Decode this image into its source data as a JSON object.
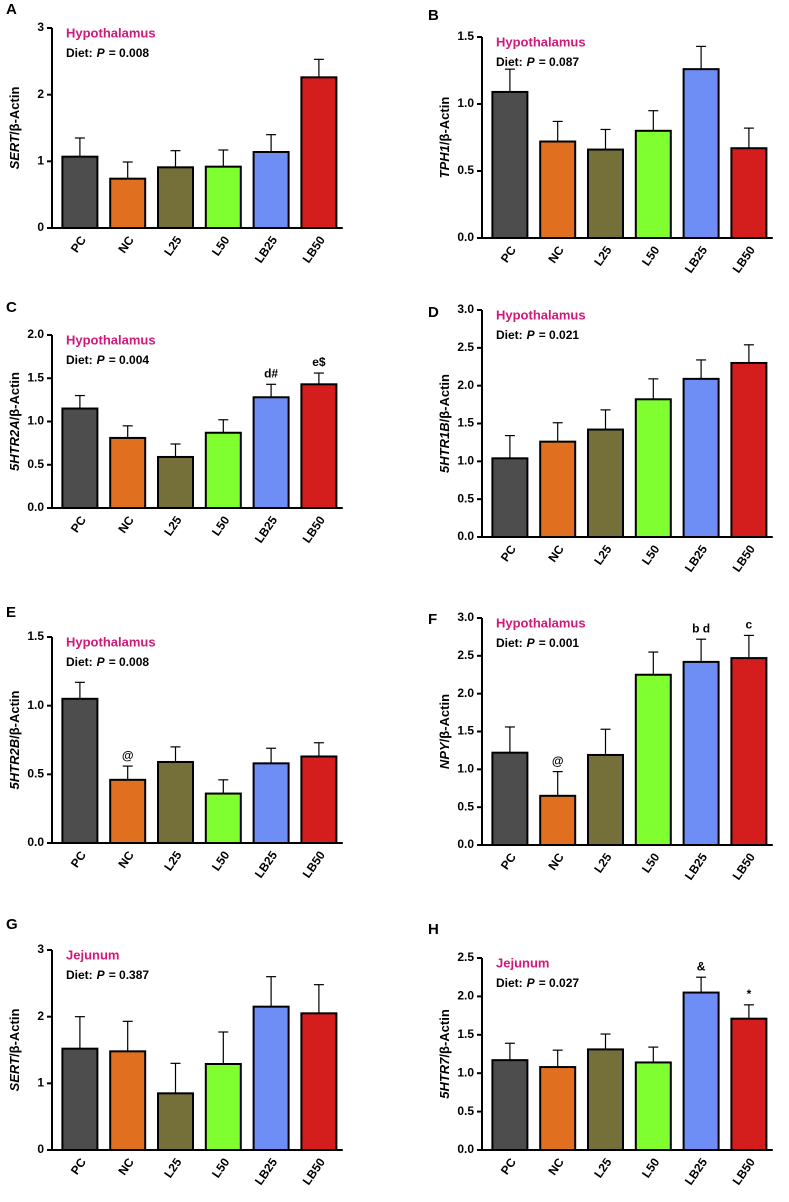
{
  "chart_data": [
    {
      "type": "bar",
      "panel": "A",
      "tissue": "Hypothalamus",
      "stat": {
        "label": "Diet:",
        "symbol": "P",
        "text": "= 0.008"
      },
      "ylabel": {
        "gene": "SERT",
        "text": "/β-Actin"
      },
      "categories": [
        "PC",
        "NC",
        "L25",
        "L50",
        "LB25",
        "LB50"
      ],
      "values": [
        1.07,
        0.74,
        0.91,
        0.92,
        1.14,
        2.26
      ],
      "errors": [
        0.28,
        0.25,
        0.25,
        0.25,
        0.26,
        0.27
      ],
      "bar_annotations": [
        null,
        null,
        null,
        null,
        null,
        null
      ],
      "colors": [
        "#4d4d4d",
        "#e07020",
        "#75703a",
        "#80ff30",
        "#6f8ef5",
        "#d41e1e"
      ],
      "ylim": [
        0,
        3
      ],
      "yticks": [
        0,
        1,
        2,
        3
      ]
    },
    {
      "type": "bar",
      "panel": "B",
      "tissue": "Hypothalamus",
      "stat": {
        "label": "Diet:",
        "symbol": "P",
        "text": "= 0.087"
      },
      "ylabel": {
        "gene": "TPH1",
        "text": "/β-Actin"
      },
      "categories": [
        "PC",
        "NC",
        "L25",
        "L50",
        "LB25",
        "LB50"
      ],
      "values": [
        1.09,
        0.72,
        0.66,
        0.8,
        1.26,
        0.67
      ],
      "errors": [
        0.17,
        0.15,
        0.15,
        0.15,
        0.17,
        0.15
      ],
      "bar_annotations": [
        null,
        null,
        null,
        null,
        null,
        null
      ],
      "colors": [
        "#4d4d4d",
        "#e07020",
        "#75703a",
        "#80ff30",
        "#6f8ef5",
        "#d41e1e"
      ],
      "ylim": [
        0,
        1.5
      ],
      "yticks": [
        {
          "value": 0,
          "label": "0.0"
        },
        0.5,
        {
          "value": 1,
          "label": "1.0"
        },
        1.5
      ]
    },
    {
      "type": "bar",
      "panel": "C",
      "tissue": "Hypothalamus",
      "stat": {
        "label": "Diet:",
        "symbol": "P",
        "text": "= 0.004"
      },
      "ylabel": {
        "gene": "5HTR2A",
        "text": "/β-Actin"
      },
      "categories": [
        "PC",
        "NC",
        "L25",
        "L50",
        "LB25",
        "LB50"
      ],
      "values": [
        1.15,
        0.81,
        0.59,
        0.87,
        1.28,
        1.43
      ],
      "errors": [
        0.15,
        0.14,
        0.15,
        0.15,
        0.15,
        0.13
      ],
      "bar_annotations": [
        null,
        null,
        null,
        null,
        "d#",
        "e$"
      ],
      "colors": [
        "#4d4d4d",
        "#e07020",
        "#75703a",
        "#80ff30",
        "#6f8ef5",
        "#d41e1e"
      ],
      "ylim": [
        0,
        2
      ],
      "yticks": [
        {
          "value": 0,
          "label": "0.0"
        },
        0.5,
        {
          "value": 1,
          "label": "1.0"
        },
        1.5,
        {
          "value": 2,
          "label": "2.0"
        }
      ]
    },
    {
      "type": "bar",
      "panel": "D",
      "tissue": "Hypothalamus",
      "stat": {
        "label": "Diet:",
        "symbol": "P",
        "text": "= 0.021"
      },
      "ylabel": {
        "gene": "5HTR1B",
        "text": "/β-Actin"
      },
      "categories": [
        "PC",
        "NC",
        "L25",
        "L50",
        "LB25",
        "LB50"
      ],
      "values": [
        1.04,
        1.26,
        1.42,
        1.82,
        2.09,
        2.3
      ],
      "errors": [
        0.3,
        0.25,
        0.26,
        0.27,
        0.25,
        0.24
      ],
      "bar_annotations": [
        null,
        null,
        null,
        null,
        null,
        null
      ],
      "colors": [
        "#4d4d4d",
        "#e07020",
        "#75703a",
        "#80ff30",
        "#6f8ef5",
        "#d41e1e"
      ],
      "ylim": [
        0,
        3
      ],
      "yticks": [
        {
          "value": 0,
          "label": "0.0"
        },
        0.5,
        {
          "value": 1,
          "label": "1.0"
        },
        1.5,
        {
          "value": 2,
          "label": "2.0"
        },
        2.5,
        {
          "value": 3,
          "label": "3.0"
        }
      ]
    },
    {
      "type": "bar",
      "panel": "E",
      "tissue": "Hypothalamus",
      "stat": {
        "label": "Diet:",
        "symbol": "P",
        "text": "= 0.008"
      },
      "ylabel": {
        "gene": "5HTR2B",
        "text": "/β-Actin"
      },
      "categories": [
        "PC",
        "NC",
        "L25",
        "L50",
        "LB25",
        "LB50"
      ],
      "values": [
        1.05,
        0.46,
        0.59,
        0.36,
        0.58,
        0.63
      ],
      "errors": [
        0.12,
        0.1,
        0.11,
        0.1,
        0.11,
        0.1
      ],
      "bar_annotations": [
        null,
        "@",
        null,
        null,
        null,
        null
      ],
      "colors": [
        "#4d4d4d",
        "#e07020",
        "#75703a",
        "#80ff30",
        "#6f8ef5",
        "#d41e1e"
      ],
      "ylim": [
        0,
        1.5
      ],
      "yticks": [
        {
          "value": 0,
          "label": "0.0"
        },
        0.5,
        {
          "value": 1,
          "label": "1.0"
        },
        1.5
      ]
    },
    {
      "type": "bar",
      "panel": "F",
      "tissue": "Hypothalamus",
      "stat": {
        "label": "Diet:",
        "symbol": "P",
        "text": "= 0.001"
      },
      "ylabel": {
        "gene": "NPY",
        "text": "/β-Actin"
      },
      "categories": [
        "PC",
        "NC",
        "L25",
        "L50",
        "LB25",
        "LB50"
      ],
      "values": [
        1.22,
        0.65,
        1.19,
        2.25,
        2.42,
        2.47
      ],
      "errors": [
        0.34,
        0.32,
        0.34,
        0.3,
        0.3,
        0.3
      ],
      "bar_annotations": [
        null,
        "@",
        null,
        null,
        "b d",
        "c"
      ],
      "colors": [
        "#4d4d4d",
        "#e07020",
        "#75703a",
        "#80ff30",
        "#6f8ef5",
        "#d41e1e"
      ],
      "ylim": [
        0,
        3
      ],
      "yticks": [
        {
          "value": 0,
          "label": "0.0"
        },
        0.5,
        {
          "value": 1,
          "label": "1.0"
        },
        1.5,
        {
          "value": 2,
          "label": "2.0"
        },
        2.5,
        {
          "value": 3,
          "label": "3.0"
        }
      ]
    },
    {
      "type": "bar",
      "panel": "G",
      "tissue": "Jejunum",
      "stat": {
        "label": "Diet:",
        "symbol": "P",
        "text": "= 0.387"
      },
      "ylabel": {
        "gene": "SERT",
        "text": "/β-Actin"
      },
      "categories": [
        "PC",
        "NC",
        "L25",
        "L50",
        "LB25",
        "LB50"
      ],
      "values": [
        1.52,
        1.48,
        0.85,
        1.29,
        2.15,
        2.05
      ],
      "errors": [
        0.48,
        0.45,
        0.45,
        0.48,
        0.45,
        0.43
      ],
      "bar_annotations": [
        null,
        null,
        null,
        null,
        null,
        null
      ],
      "colors": [
        "#4d4d4d",
        "#e07020",
        "#75703a",
        "#80ff30",
        "#6f8ef5",
        "#d41e1e"
      ],
      "ylim": [
        0,
        3
      ],
      "yticks": [
        0,
        1,
        2,
        3
      ]
    },
    {
      "type": "bar",
      "panel": "H",
      "tissue": "Jejunum",
      "stat": {
        "label": "Diet:",
        "symbol": "P",
        "text": "= 0.027"
      },
      "ylabel": {
        "gene": "5HTR7",
        "text": "/β-Actin"
      },
      "categories": [
        "PC",
        "NC",
        "L25",
        "L50",
        "LB25",
        "LB50"
      ],
      "values": [
        1.17,
        1.08,
        1.31,
        1.14,
        2.05,
        1.71
      ],
      "errors": [
        0.22,
        0.22,
        0.2,
        0.2,
        0.2,
        0.18
      ],
      "bar_annotations": [
        null,
        null,
        null,
        null,
        "&",
        "*"
      ],
      "colors": [
        "#4d4d4d",
        "#e07020",
        "#75703a",
        "#80ff30",
        "#6f8ef5",
        "#d41e1e"
      ],
      "ylim": [
        0,
        2.5
      ],
      "yticks": [
        {
          "value": 0,
          "label": "0.0"
        },
        0.5,
        {
          "value": 1,
          "label": "1.0"
        },
        1.5,
        {
          "value": 2,
          "label": "2.0"
        },
        2.5
      ]
    }
  ]
}
